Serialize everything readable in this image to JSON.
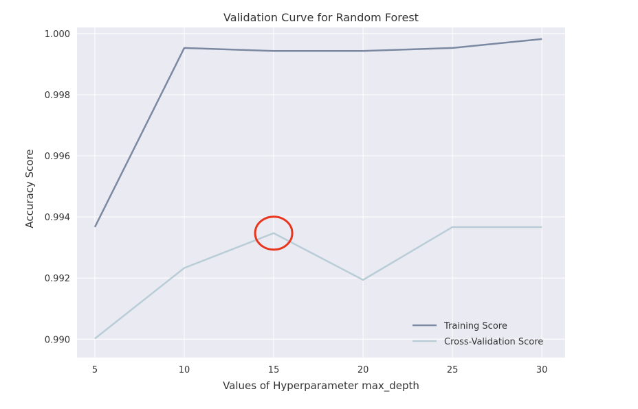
{
  "chart_data": {
    "type": "line",
    "title": "Validation Curve for Random Forest",
    "xlabel": "Values of Hyperparameter max_depth",
    "ylabel": "Accuracy Score",
    "x": [
      5,
      10,
      15,
      20,
      25,
      30
    ],
    "x_ticks": [
      "5",
      "10",
      "15",
      "20",
      "25",
      "30"
    ],
    "y_ticks": [
      "0.990",
      "0.992",
      "0.994",
      "0.996",
      "0.998",
      "1.000"
    ],
    "xlim": [
      4,
      31.3
    ],
    "ylim": [
      0.9894,
      1.0002
    ],
    "grid": true,
    "legend_position": "bottom-right",
    "series": [
      {
        "name": "Training Score",
        "color": "#7a88a1",
        "values": [
          0.99367,
          0.99953,
          0.99943,
          0.99943,
          0.99953,
          0.99982
        ]
      },
      {
        "name": "Cross-Validation Score",
        "color": "#b9cdd6",
        "values": [
          0.99002,
          0.99233,
          0.99347,
          0.99194,
          0.99367,
          0.99367
        ]
      }
    ],
    "annotation": {
      "type": "circle",
      "x": 15,
      "y": 0.99347,
      "color": "#e8361e"
    },
    "colors": {
      "plot_background": "#eaeaf2",
      "grid": "#ffffff"
    }
  }
}
